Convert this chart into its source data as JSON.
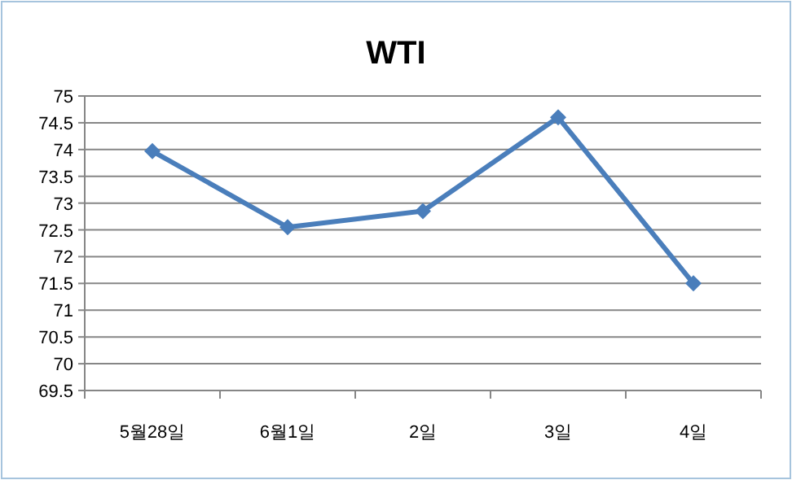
{
  "chart_data": {
    "type": "line",
    "title": "WTI",
    "categories": [
      "5월28일",
      "6월1일",
      "2일",
      "3일",
      "4일"
    ],
    "values": [
      73.97,
      72.55,
      72.85,
      74.6,
      71.5
    ],
    "color": "#4a7ebb",
    "marker": "diamond",
    "grid": "y",
    "ylim": [
      69.5,
      75
    ],
    "yticks": [
      69.5,
      70,
      70.5,
      71,
      71.5,
      72,
      72.5,
      73,
      73.5,
      74,
      74.5,
      75
    ]
  }
}
